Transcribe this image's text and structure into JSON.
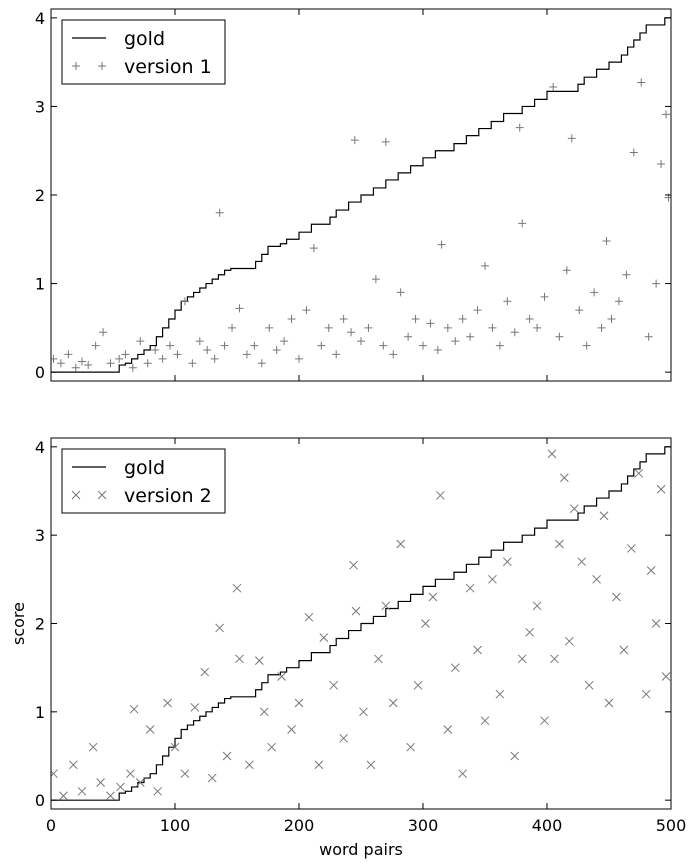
{
  "chart_data": [
    {
      "type": "scatter",
      "xlim": [
        0,
        500
      ],
      "ylim": [
        -0.1,
        4.1
      ],
      "yticks": [
        0,
        1,
        2,
        3,
        4
      ],
      "xtick_labels_shown": false,
      "grid": false,
      "legend_placement": "top-left",
      "xlabel": "",
      "ylabel": "",
      "series": [
        {
          "name": "gold",
          "style": "step-line",
          "color": "#000000",
          "x": [
            0,
            55,
            60,
            65,
            70,
            75,
            80,
            85,
            90,
            95,
            100,
            105,
            110,
            115,
            120,
            125,
            130,
            135,
            140,
            145,
            150,
            155,
            160,
            165,
            170,
            175,
            180,
            185,
            190,
            195,
            200,
            205,
            210,
            215,
            220,
            225,
            230,
            235,
            240,
            245,
            250,
            255,
            260,
            265,
            270,
            275,
            280,
            285,
            290,
            295,
            300,
            305,
            310,
            315,
            320,
            325,
            330,
            335,
            340,
            345,
            350,
            355,
            360,
            365,
            370,
            375,
            380,
            385,
            390,
            395,
            400,
            405,
            410,
            415,
            420,
            425,
            430,
            435,
            440,
            445,
            450,
            455,
            460,
            465,
            470,
            475,
            480,
            485,
            490,
            495,
            500
          ],
          "y": [
            0,
            0.08,
            0.1,
            0.15,
            0.2,
            0.25,
            0.3,
            0.4,
            0.5,
            0.6,
            0.7,
            0.8,
            0.85,
            0.9,
            0.95,
            1.0,
            1.05,
            1.1,
            1.15,
            1.17,
            1.17,
            1.17,
            1.17,
            1.25,
            1.33,
            1.42,
            1.42,
            1.45,
            1.5,
            1.5,
            1.58,
            1.58,
            1.67,
            1.67,
            1.67,
            1.75,
            1.83,
            1.83,
            1.92,
            1.92,
            2.0,
            2.0,
            2.08,
            2.08,
            2.17,
            2.17,
            2.25,
            2.25,
            2.33,
            2.33,
            2.42,
            2.42,
            2.5,
            2.5,
            2.5,
            2.58,
            2.58,
            2.67,
            2.67,
            2.75,
            2.75,
            2.83,
            2.83,
            2.92,
            2.92,
            2.92,
            3.0,
            3.0,
            3.08,
            3.08,
            3.17,
            3.17,
            3.17,
            3.17,
            3.17,
            3.25,
            3.33,
            3.33,
            3.42,
            3.42,
            3.5,
            3.5,
            3.58,
            3.67,
            3.75,
            3.83,
            3.92,
            3.92,
            3.92,
            4.0,
            4.0
          ]
        },
        {
          "name": "version 1",
          "marker": "+",
          "color": "#777777",
          "x": [
            2,
            8,
            14,
            20,
            25,
            30,
            36,
            42,
            48,
            55,
            60,
            66,
            72,
            78,
            84,
            90,
            96,
            102,
            108,
            114,
            120,
            126,
            132,
            136,
            140,
            146,
            152,
            158,
            164,
            170,
            176,
            182,
            188,
            194,
            200,
            206,
            212,
            218,
            224,
            230,
            236,
            242,
            245,
            250,
            256,
            262,
            268,
            270,
            276,
            282,
            288,
            294,
            300,
            306,
            312,
            315,
            320,
            326,
            332,
            338,
            344,
            350,
            356,
            362,
            368,
            374,
            378,
            380,
            386,
            392,
            398,
            405,
            410,
            416,
            420,
            426,
            432,
            438,
            444,
            448,
            452,
            458,
            464,
            470,
            476,
            482,
            488,
            492,
            496,
            498
          ],
          "y": [
            0.15,
            0.1,
            0.2,
            0.05,
            0.12,
            0.08,
            0.3,
            0.45,
            0.1,
            0.15,
            0.2,
            0.05,
            0.35,
            0.1,
            0.25,
            0.15,
            0.3,
            0.2,
            0.8,
            0.1,
            0.35,
            0.25,
            0.15,
            1.8,
            0.3,
            0.5,
            0.72,
            0.2,
            0.3,
            0.1,
            0.5,
            0.25,
            0.35,
            0.6,
            0.15,
            0.7,
            1.4,
            0.3,
            0.5,
            0.2,
            0.6,
            0.45,
            2.62,
            0.35,
            0.5,
            1.05,
            0.3,
            2.6,
            0.2,
            0.9,
            0.4,
            0.6,
            0.3,
            0.55,
            0.25,
            1.44,
            0.5,
            0.35,
            0.6,
            0.4,
            0.7,
            1.2,
            0.5,
            0.3,
            0.8,
            0.45,
            2.76,
            1.68,
            0.6,
            0.5,
            0.85,
            3.22,
            0.4,
            1.15,
            2.64,
            0.7,
            0.3,
            0.9,
            0.5,
            1.48,
            0.6,
            0.8,
            1.1,
            2.48,
            3.27,
            0.4,
            1.0,
            2.35,
            2.91,
            1.97
          ]
        }
      ]
    },
    {
      "type": "scatter",
      "xlim": [
        0,
        500
      ],
      "ylim": [
        -0.1,
        4.1
      ],
      "xticks": [
        0,
        100,
        200,
        300,
        400,
        500
      ],
      "yticks": [
        0,
        1,
        2,
        3,
        4
      ],
      "grid": false,
      "legend_placement": "top-left",
      "xlabel": "word pairs",
      "ylabel": "score",
      "series": [
        {
          "name": "gold",
          "style": "step-line",
          "color": "#000000",
          "x": [
            0,
            55,
            60,
            65,
            70,
            75,
            80,
            85,
            90,
            95,
            100,
            105,
            110,
            115,
            120,
            125,
            130,
            135,
            140,
            145,
            150,
            155,
            160,
            165,
            170,
            175,
            180,
            185,
            190,
            195,
            200,
            205,
            210,
            215,
            220,
            225,
            230,
            235,
            240,
            245,
            250,
            255,
            260,
            265,
            270,
            275,
            280,
            285,
            290,
            295,
            300,
            305,
            310,
            315,
            320,
            325,
            330,
            335,
            340,
            345,
            350,
            355,
            360,
            365,
            370,
            375,
            380,
            385,
            390,
            395,
            400,
            405,
            410,
            415,
            420,
            425,
            430,
            435,
            440,
            445,
            450,
            455,
            460,
            465,
            470,
            475,
            480,
            485,
            490,
            495,
            500
          ],
          "y": [
            0,
            0.08,
            0.1,
            0.15,
            0.2,
            0.25,
            0.3,
            0.4,
            0.5,
            0.6,
            0.7,
            0.8,
            0.85,
            0.9,
            0.95,
            1.0,
            1.05,
            1.1,
            1.15,
            1.17,
            1.17,
            1.17,
            1.17,
            1.25,
            1.33,
            1.42,
            1.42,
            1.45,
            1.5,
            1.5,
            1.58,
            1.58,
            1.67,
            1.67,
            1.67,
            1.75,
            1.83,
            1.83,
            1.92,
            1.92,
            2.0,
            2.0,
            2.08,
            2.08,
            2.17,
            2.17,
            2.25,
            2.25,
            2.33,
            2.33,
            2.42,
            2.42,
            2.5,
            2.5,
            2.5,
            2.58,
            2.58,
            2.67,
            2.67,
            2.75,
            2.75,
            2.83,
            2.83,
            2.92,
            2.92,
            2.92,
            3.0,
            3.0,
            3.08,
            3.08,
            3.17,
            3.17,
            3.17,
            3.17,
            3.17,
            3.25,
            3.33,
            3.33,
            3.42,
            3.42,
            3.5,
            3.5,
            3.58,
            3.67,
            3.75,
            3.83,
            3.92,
            3.92,
            3.92,
            4.0,
            4.0
          ]
        },
        {
          "name": "version 2",
          "marker": "x",
          "color": "#777777",
          "x": [
            2,
            10,
            18,
            25,
            34,
            40,
            48,
            56,
            64,
            67,
            72,
            80,
            86,
            94,
            100,
            108,
            116,
            124,
            130,
            136,
            142,
            150,
            152,
            160,
            168,
            172,
            178,
            186,
            194,
            200,
            208,
            216,
            220,
            228,
            236,
            244,
            246,
            252,
            258,
            264,
            270,
            276,
            282,
            290,
            296,
            302,
            308,
            314,
            320,
            326,
            332,
            338,
            344,
            350,
            356,
            362,
            368,
            374,
            380,
            386,
            392,
            398,
            404,
            406,
            410,
            414,
            418,
            422,
            428,
            434,
            440,
            446,
            450,
            456,
            462,
            468,
            474,
            480,
            484,
            488,
            492,
            496
          ],
          "y": [
            0.3,
            0.05,
            0.4,
            0.1,
            0.6,
            0.2,
            0.05,
            0.15,
            0.3,
            1.03,
            0.2,
            0.8,
            0.1,
            1.1,
            0.6,
            0.3,
            1.05,
            1.45,
            0.25,
            1.95,
            0.5,
            2.4,
            1.6,
            0.4,
            1.58,
            1.0,
            0.6,
            1.4,
            0.8,
            1.1,
            2.07,
            0.4,
            1.84,
            1.3,
            0.7,
            2.66,
            2.14,
            1.0,
            0.4,
            1.6,
            2.2,
            1.1,
            2.9,
            0.6,
            1.3,
            2.0,
            2.3,
            3.45,
            0.8,
            1.5,
            0.3,
            2.4,
            1.7,
            0.9,
            2.5,
            1.2,
            2.7,
            0.5,
            1.6,
            1.9,
            2.2,
            0.9,
            3.92,
            1.6,
            2.9,
            3.65,
            1.8,
            3.3,
            2.7,
            1.3,
            2.5,
            3.22,
            1.1,
            2.3,
            1.7,
            2.85,
            3.7,
            1.2,
            2.6,
            2.0,
            3.52,
            1.4
          ]
        }
      ]
    }
  ]
}
